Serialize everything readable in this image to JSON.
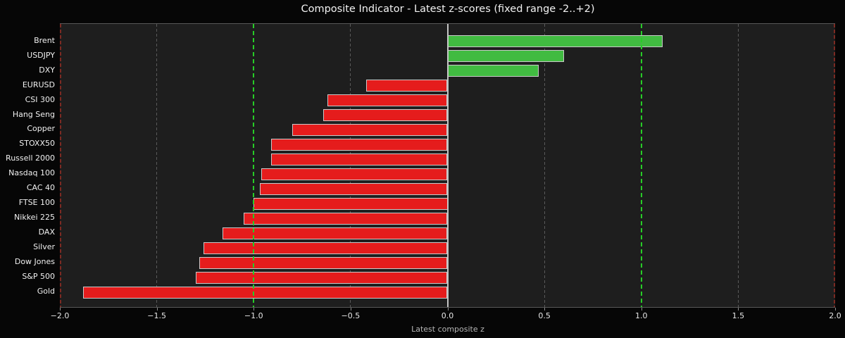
{
  "title": "Composite Indicator - Latest z-scores (fixed range -2..+2)",
  "x_axis_label": "Latest composite z",
  "colors": {
    "figure_background": "#060606",
    "plot_background": "#1e1e1e",
    "positive_bar": "#41bb41",
    "negative_bar": "#e51c1c",
    "bar_edge": "#c9c9c9",
    "gridline": "#5a5a5a",
    "zero_line": "#c4c4c4",
    "threshold_line": "#27cc27",
    "range_spine": "#7c2a22",
    "title_text": "#f2f2f2",
    "tick_text": "#e6e6e6",
    "axis_label_text": "#b5b5b5"
  },
  "chart_data": {
    "type": "bar",
    "orientation": "horizontal",
    "title": "Composite Indicator - Latest z-scores (fixed range -2..+2)",
    "xlabel": "Latest composite z",
    "xlim": [
      -2.0,
      2.0
    ],
    "xticks": [
      -2.0,
      -1.5,
      -1.0,
      -0.5,
      0.0,
      0.5,
      1.0,
      1.5,
      2.0
    ],
    "gridlines_dashed_gray": [
      -1.5,
      -0.5,
      0.5,
      1.5
    ],
    "threshold_lines_green_dashed": [
      -1.0,
      1.0
    ],
    "zero_line": 0.0,
    "grid": true,
    "legend": "none",
    "categories": [
      "Brent",
      "USDJPY",
      "DXY",
      "EURUSD",
      "CSI 300",
      "Hang Seng",
      "Copper",
      "STOXX50",
      "Russell 2000",
      "Nasdaq 100",
      "CAC 40",
      "FTSE 100",
      "Nikkei 225",
      "DAX",
      "Silver",
      "Dow Jones",
      "S&P 500",
      "Gold"
    ],
    "values": [
      1.11,
      0.6,
      0.47,
      -0.42,
      -0.62,
      -0.64,
      -0.8,
      -0.91,
      -0.91,
      -0.96,
      -0.97,
      -1.0,
      -1.05,
      -1.16,
      -1.26,
      -1.28,
      -1.3,
      -1.88
    ],
    "value_color_rule": "green if positive, red if negative"
  }
}
